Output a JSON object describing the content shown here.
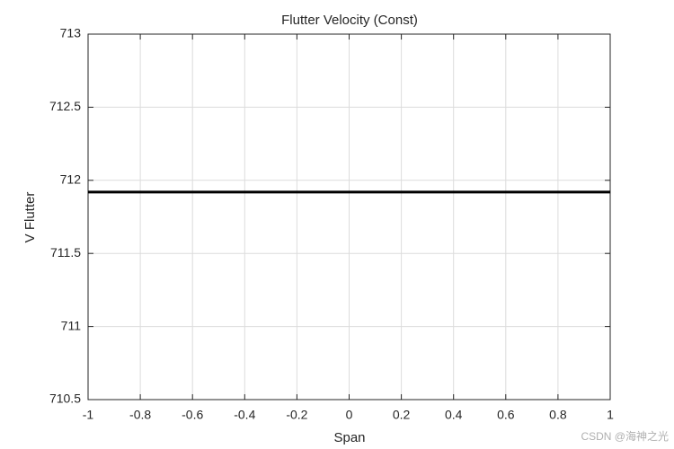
{
  "chart_data": {
    "type": "line",
    "title": "Flutter Velocity (Const)",
    "xlabel": "Span",
    "ylabel": "V Flutter",
    "x": [
      -1,
      1
    ],
    "series": [
      {
        "color": "#000000",
        "values": [
          711.92,
          711.92
        ]
      }
    ],
    "xlim": [
      -1,
      1
    ],
    "xticks": [
      -1,
      -0.8,
      -0.6,
      -0.4,
      -0.2,
      0,
      0.2,
      0.4,
      0.6,
      0.8,
      1
    ],
    "ylim": [
      710.5,
      713
    ],
    "yticks": [
      710.5,
      711,
      711.5,
      712,
      712.5,
      713
    ],
    "grid": true,
    "watermark": "CSDN @海神之光"
  }
}
